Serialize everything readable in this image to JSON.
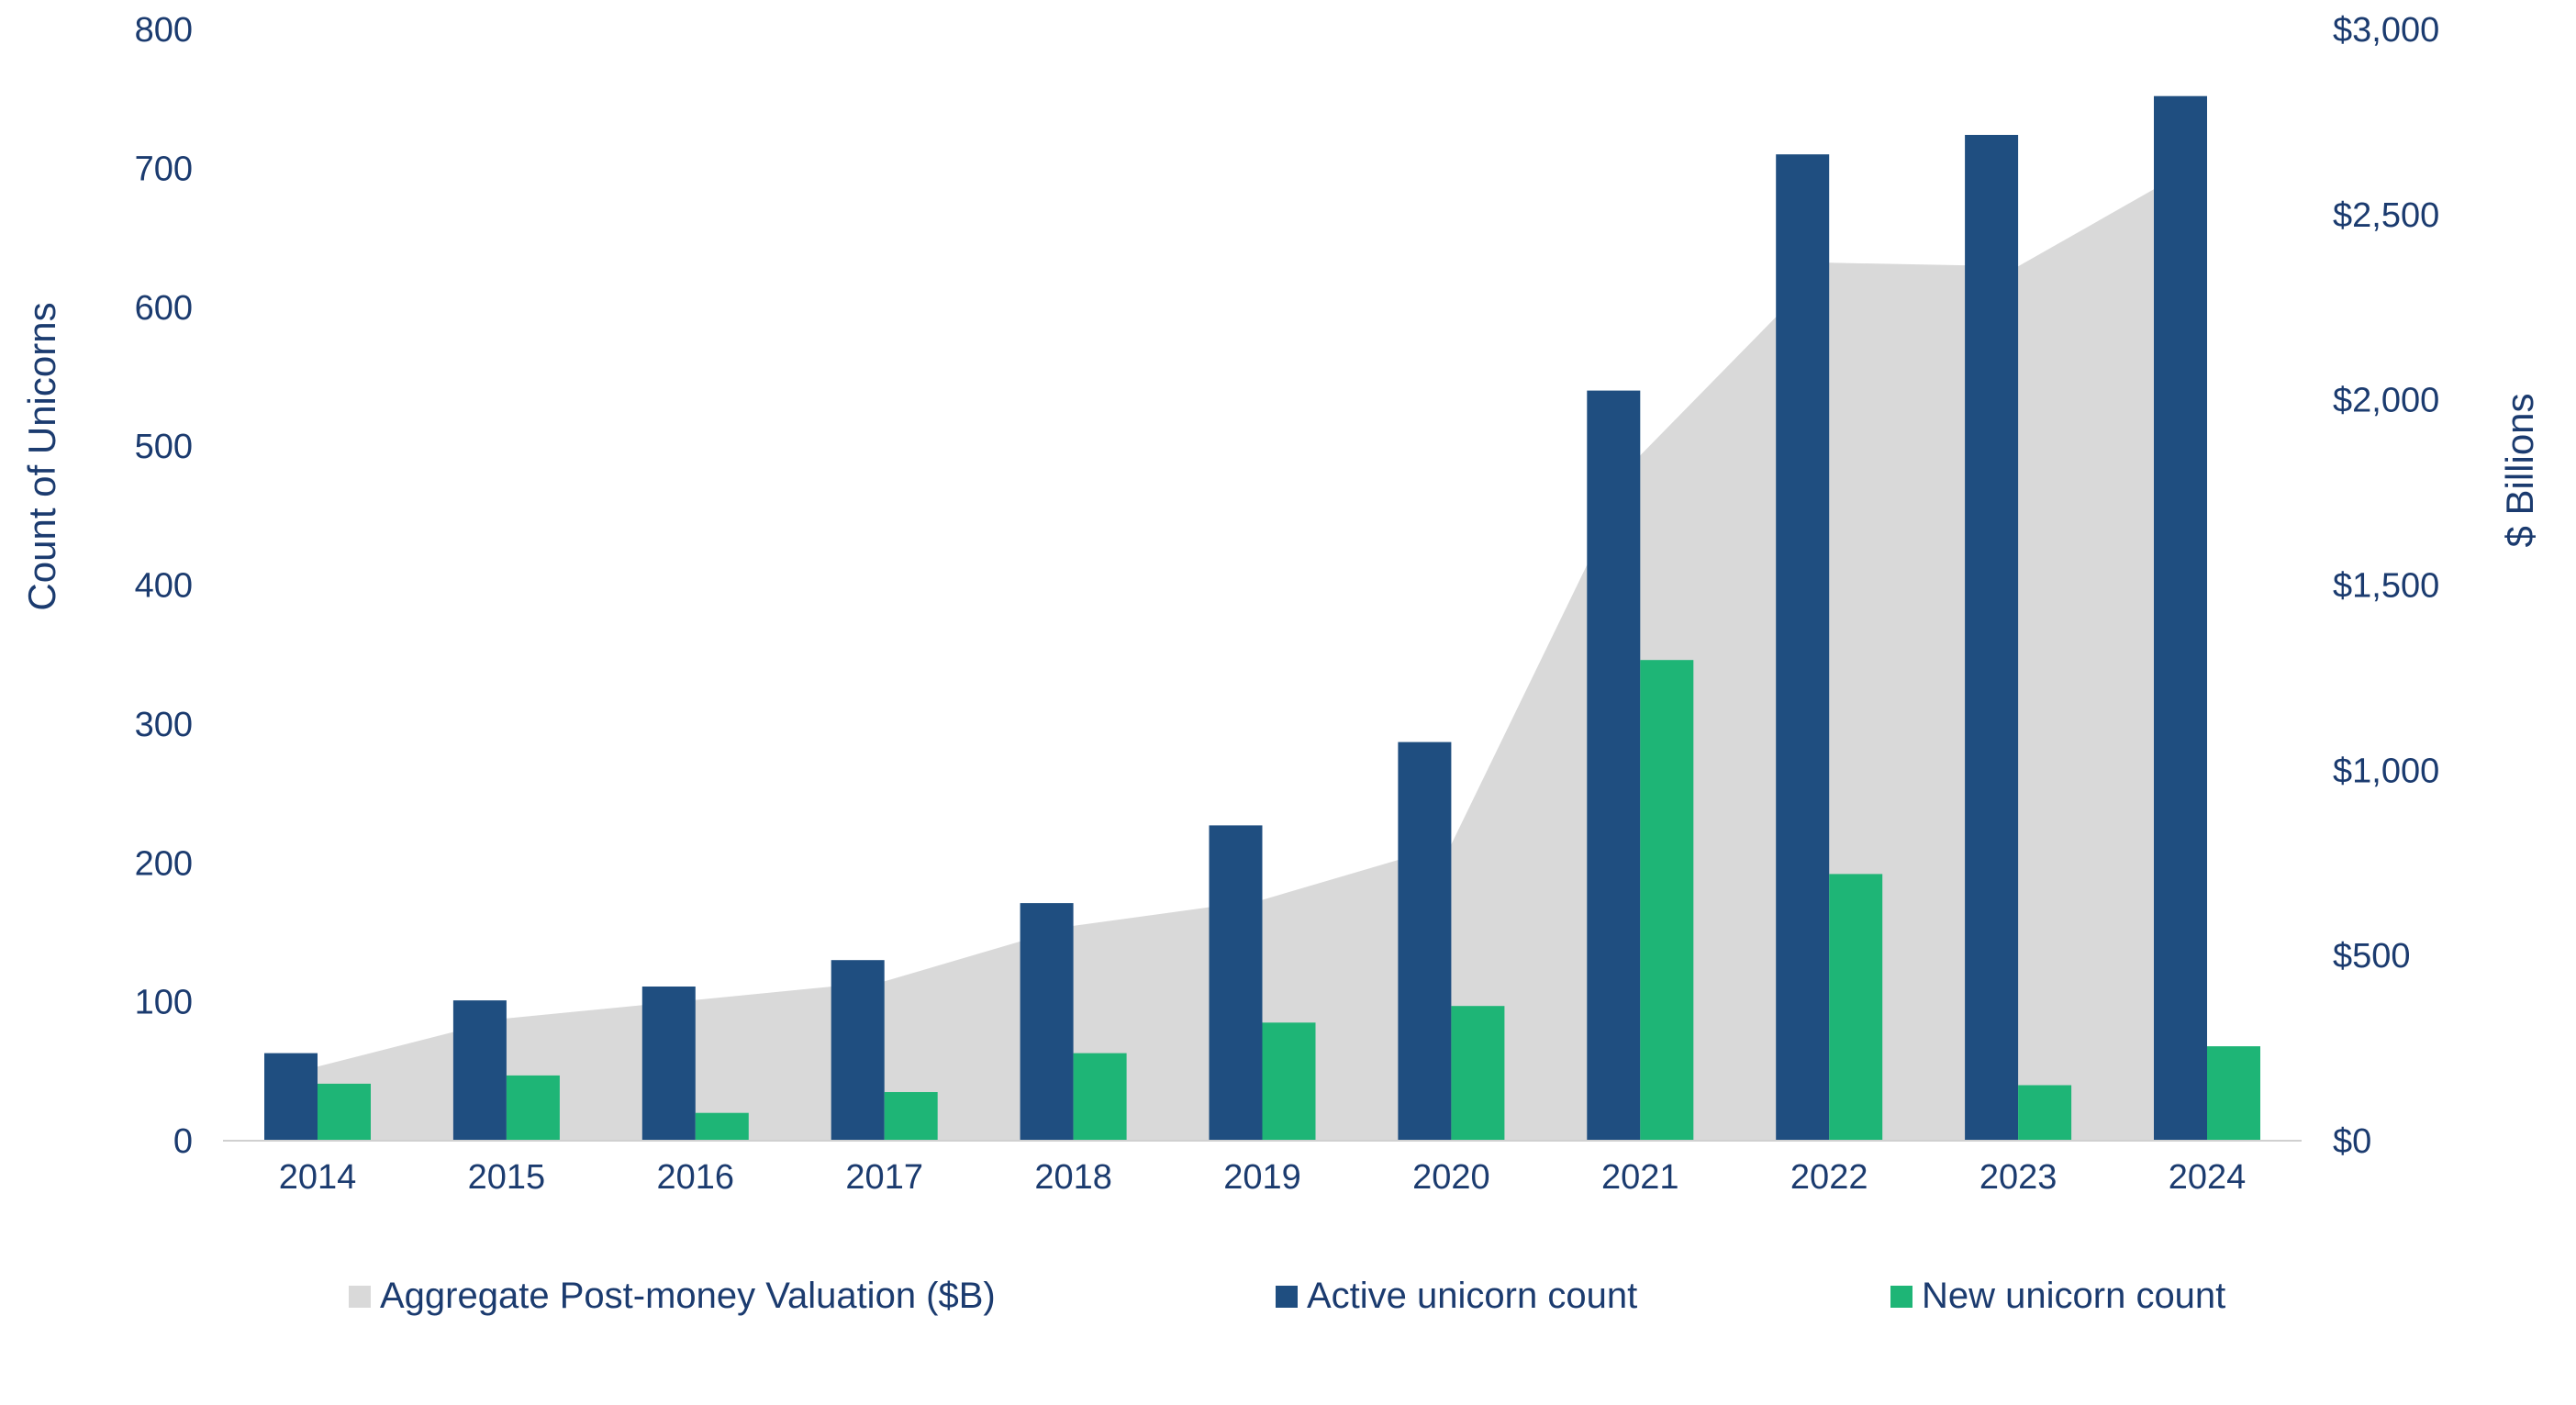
{
  "chart_data": {
    "type": "bar",
    "categories": [
      "2014",
      "2015",
      "2016",
      "2017",
      "2018",
      "2019",
      "2020",
      "2021",
      "2022",
      "2023",
      "2024"
    ],
    "series": [
      {
        "name": "Aggregate Post-money Valuation ($B)",
        "kind": "area",
        "axis": "right",
        "color": "#d9d9d9",
        "values": [
          200,
          330,
          380,
          430,
          580,
          650,
          800,
          1850,
          2370,
          2360,
          2650
        ]
      },
      {
        "name": "Active unicorn count",
        "kind": "bar",
        "axis": "left",
        "color": "#1f4e80",
        "values": [
          63,
          101,
          111,
          130,
          171,
          227,
          287,
          540,
          710,
          724,
          752
        ]
      },
      {
        "name": "New unicorn count",
        "kind": "bar",
        "axis": "left",
        "color": "#1eb576",
        "values": [
          41,
          47,
          20,
          35,
          63,
          85,
          97,
          346,
          192,
          40,
          68
        ]
      }
    ],
    "ylabel": "Count of Unicorns",
    "y2label": "$ Billions",
    "ylim": [
      0,
      800
    ],
    "y2lim": [
      0,
      3000
    ],
    "yticks": [
      "0",
      "100",
      "200",
      "300",
      "400",
      "500",
      "600",
      "700",
      "800"
    ],
    "y2ticks": [
      "$0",
      "$500",
      "$1,000",
      "$1,500",
      "$2,000",
      "$2,500",
      "$3,000"
    ],
    "grid": false,
    "legend_position": "bottom"
  }
}
